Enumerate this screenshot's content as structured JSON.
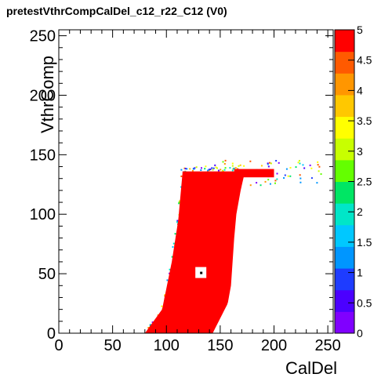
{
  "chart_data": {
    "type": "heatmap",
    "title": "pretestVthrCompCalDel_c12_r22_C12 (V0)",
    "xlabel": "CalDel",
    "ylabel": "VthrComp",
    "xlim": [
      0,
      255
    ],
    "ylim": [
      0,
      255
    ],
    "x_ticks": [
      0,
      50,
      100,
      150,
      200,
      250
    ],
    "y_ticks": [
      0,
      50,
      100,
      150,
      200,
      250
    ],
    "z_range": [
      0,
      5
    ],
    "z_ticks": [
      "0",
      "0.5",
      "1",
      "1.5",
      "2",
      "2.5",
      "3",
      "3.5",
      "4",
      "4.5",
      "5"
    ],
    "palette": [
      "#8000ff",
      "#4b00ff",
      "#1e3cff",
      "#0096ff",
      "#00c8ff",
      "#00e6c8",
      "#00e664",
      "#64ff00",
      "#c8ff00",
      "#ffff00",
      "#ffc800",
      "#ff9600",
      "#ff5a00",
      "#ff0000"
    ],
    "region": {
      "value": 5,
      "ymin": 0,
      "ymax": 136,
      "left_edge": [
        [
          0,
          80
        ],
        [
          20,
          96
        ],
        [
          60,
          105
        ],
        [
          95,
          111
        ],
        [
          135,
          115
        ]
      ],
      "right_edge": [
        [
          0,
          143
        ],
        [
          25,
          157
        ],
        [
          40,
          160
        ],
        [
          80,
          163
        ],
        [
          100,
          165
        ],
        [
          120,
          169
        ],
        [
          136,
          173
        ]
      ],
      "plateau": {
        "xmin": 173,
        "xmax": 245,
        "ymin": 129,
        "ymax": 142
      },
      "hole": {
        "x": 132,
        "y": 51
      }
    },
    "grid": false,
    "legend": "color-scale-right"
  }
}
